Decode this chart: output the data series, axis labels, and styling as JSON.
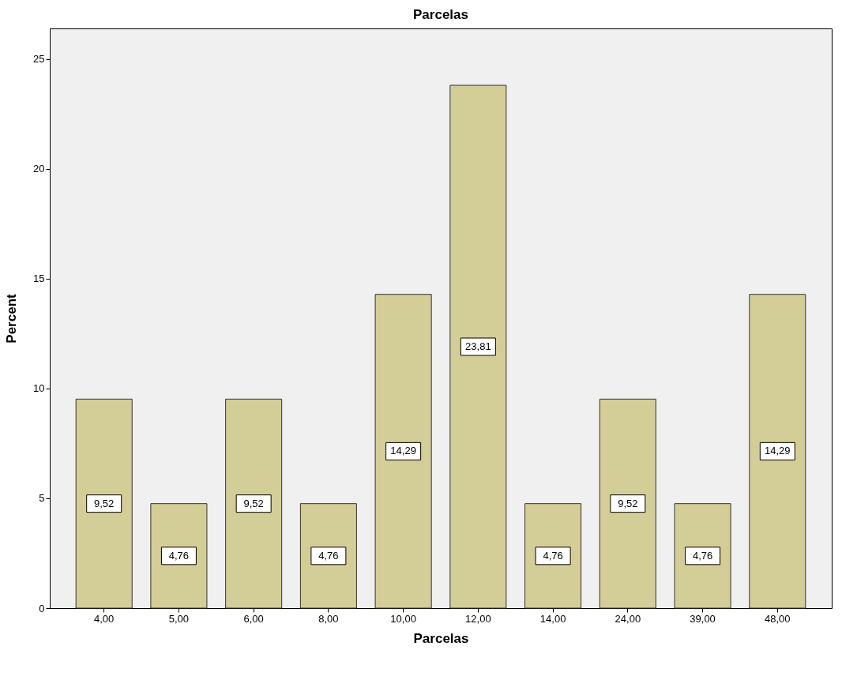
{
  "chart_data": {
    "type": "bar",
    "title": "Parcelas",
    "xlabel": "Parcelas",
    "ylabel": "Percent",
    "categories": [
      "4,00",
      "5,00",
      "6,00",
      "8,00",
      "10,00",
      "12,00",
      "14,00",
      "24,00",
      "39,00",
      "48,00"
    ],
    "values": [
      9.52,
      4.76,
      9.52,
      4.76,
      14.29,
      23.81,
      4.76,
      9.52,
      4.76,
      14.29
    ],
    "value_labels": [
      "9,52",
      "4,76",
      "9,52",
      "4,76",
      "14,29",
      "23,81",
      "4,76",
      "9,52",
      "4,76",
      "14,29"
    ],
    "color": "#d3ce97",
    "ylim": [
      0,
      26.4
    ],
    "yticks": [
      0,
      5,
      10,
      15,
      20,
      25
    ],
    "grid": false
  }
}
